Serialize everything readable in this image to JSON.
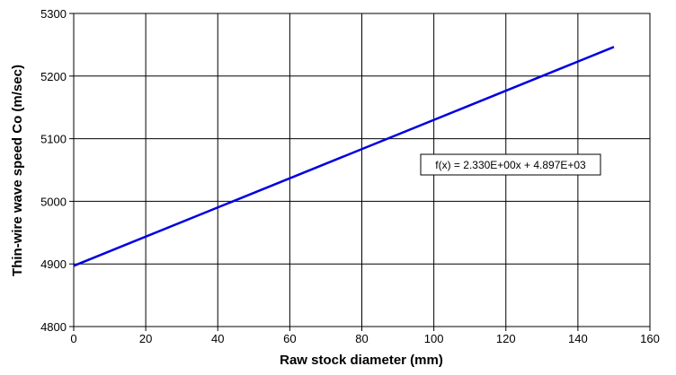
{
  "chart_data": {
    "type": "line",
    "x_label": "Raw stock diameter (mm)",
    "y_label": "Thin-wire wave speed Co (m/sec)",
    "annotation": "f(x) = 2.330E+00x + 4.897E+03",
    "x": [
      0,
      150
    ],
    "series": [
      {
        "name": "f(x)",
        "color": "#0000e0",
        "values": [
          4897,
          5246.5
        ]
      }
    ],
    "xlim": [
      0,
      160
    ],
    "xticks": [
      0,
      20,
      40,
      60,
      80,
      100,
      120,
      140,
      160
    ],
    "ylim": [
      4800,
      5300
    ],
    "yticks": [
      4800,
      4900,
      5000,
      5100,
      5200,
      5300
    ],
    "grid": true
  }
}
